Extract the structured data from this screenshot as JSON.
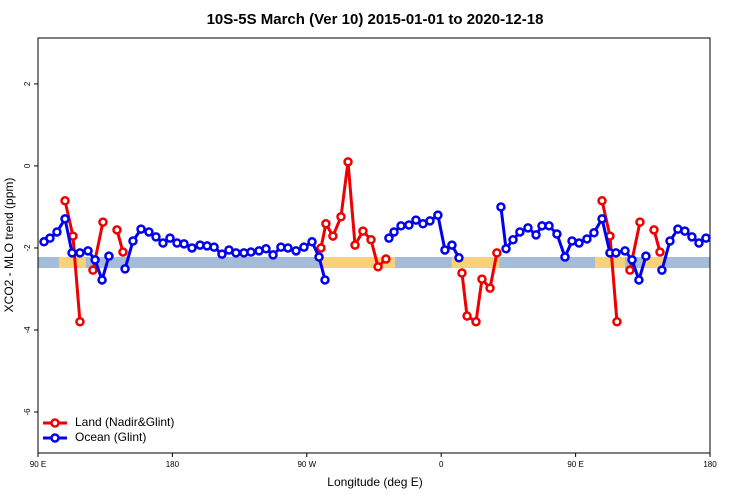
{
  "chart_data": {
    "type": "line",
    "title": "10S-5S March (Ver 10)   2015-01-01 to 2020-12-18",
    "x_label": "Longitude (deg E)",
    "y_label": "XCO2 - MLO trend (ppm)",
    "xlim": [
      90,
      540
    ],
    "xticks": [
      {
        "value": 90,
        "label": "90 E"
      },
      180,
      {
        "value": 270,
        "label": "90 W"
      },
      {
        "value": 360,
        "label": "0"
      },
      {
        "value": 450,
        "label": "90 E"
      },
      {
        "value": 540,
        "label": "180"
      }
    ],
    "ylim": [
      -7,
      3.12
    ],
    "yticks": [
      2,
      0,
      -2,
      -4,
      -6
    ],
    "legend": "bottom left",
    "band": {
      "ylim": [
        -2.49,
        -2.22
      ],
      "color": "#a5bcd8"
    },
    "highlight": {
      "color": "#f8d27a",
      "ranges": [
        [
          104,
          122
        ],
        [
          279,
          329
        ],
        [
          367,
          399
        ],
        [
          463,
          483
        ],
        [
          496,
          510
        ]
      ]
    },
    "series": [
      {
        "name": "Land (Nadir&Glint)",
        "color": "#ee0000",
        "x": [
          108.1,
          113.4,
          118.1,
          122,
          126.8,
          133.5,
          137,
          142.9,
          146.9,
          200,
          279.5,
          282.8,
          287.5,
          292.9,
          297.6,
          302.3,
          307.6,
          313.0,
          317.7,
          323.0,
          340,
          373.9,
          377.3,
          383.3,
          387.3,
          392.7,
          397.3,
          420,
          467.7,
          473.0,
          477.7,
          482,
          486.4,
          493.1,
          497,
          502.5,
          506.5
        ],
        "values": [
          -0.85,
          -1.71,
          -3.8,
          null,
          -2.54,
          -1.37,
          null,
          -1.56,
          -2.1,
          null,
          -2.0,
          -1.41,
          -1.71,
          -1.24,
          0.1,
          -1.93,
          -1.59,
          -1.8,
          -2.46,
          -2.27,
          null,
          -2.61,
          -3.66,
          -3.8,
          -2.76,
          -2.98,
          -2.12,
          null,
          -0.85,
          -1.71,
          -3.8,
          null,
          -2.54,
          -1.37,
          null,
          -1.56,
          -2.1
        ]
      },
      {
        "name": "Ocean (Glint)",
        "color": "#0000ee",
        "x": [
          94.0,
          98.0,
          102.7,
          108.1,
          112.8,
          118.1,
          123.5,
          128.2,
          132.9,
          137.5,
          141.0,
          148.3,
          153.6,
          159.0,
          164.3,
          169.0,
          173.7,
          178.4,
          183.1,
          187.8,
          193.1,
          198.5,
          203.2,
          207.9,
          213.2,
          217.9,
          222.6,
          227.9,
          232.6,
          238.0,
          242.7,
          247.4,
          252.7,
          257.4,
          262.8,
          268.1,
          273.5,
          278.2,
          282.2,
          300,
          325.0,
          328.4,
          333.1,
          338.4,
          343.1,
          347.8,
          352.5,
          357.8,
          362.5,
          367.2,
          371.9,
          380,
          400.0,
          403.4,
          408.1,
          412.7,
          418.1,
          423.5,
          427.5,
          432.2,
          437.5,
          442.9,
          447.6,
          452.3,
          457.6,
          462.3,
          467.7,
          473.0,
          477.0,
          483.1,
          487.8,
          492.4,
          497.1,
          505,
          507.8,
          513.2,
          518.5,
          523.2,
          527.9,
          532.6,
          537.3
        ],
        "values": [
          -1.85,
          -1.76,
          -1.61,
          -1.29,
          -2.12,
          -2.12,
          -2.07,
          -2.29,
          -2.78,
          -2.2,
          null,
          -2.51,
          -1.83,
          -1.54,
          -1.61,
          -1.73,
          -1.88,
          -1.76,
          -1.88,
          -1.9,
          -2.0,
          -1.93,
          -1.95,
          -1.98,
          -2.15,
          -2.05,
          -2.12,
          -2.12,
          -2.1,
          -2.07,
          -2.02,
          -2.17,
          -1.98,
          -2.0,
          -2.07,
          -1.98,
          -1.85,
          -2.22,
          -2.78,
          null,
          -1.76,
          -1.61,
          -1.46,
          -1.44,
          -1.32,
          -1.41,
          -1.34,
          -1.2,
          -2.05,
          -1.93,
          -2.24,
          null,
          -1.0,
          -2.02,
          -1.8,
          -1.61,
          -1.51,
          -1.68,
          -1.46,
          -1.46,
          -1.66,
          -2.22,
          -1.83,
          -1.88,
          -1.78,
          -1.63,
          -1.29,
          -2.12,
          -2.12,
          -2.07,
          -2.29,
          -2.78,
          -2.2,
          null,
          -2.54,
          -1.83,
          -1.54,
          -1.59,
          -1.73,
          -1.88,
          -1.76
        ]
      }
    ]
  }
}
